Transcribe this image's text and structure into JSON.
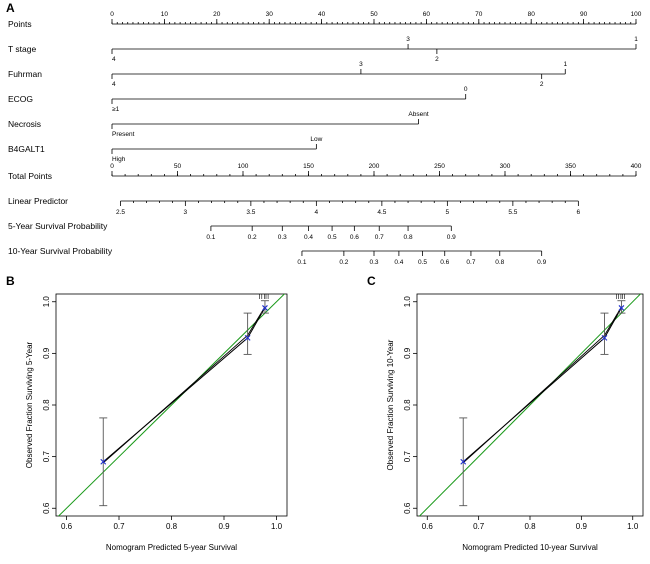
{
  "panels": {
    "a": "A",
    "b": "B",
    "c": "C"
  },
  "chart_data": [
    {
      "type": "nomogram",
      "panel": "A",
      "rows": [
        {
          "label": "Points",
          "kind": "scale",
          "min": 0,
          "max": 100,
          "ticks": [
            0,
            10,
            20,
            30,
            40,
            50,
            60,
            70,
            80,
            90,
            100
          ],
          "labels": [
            "0",
            "10",
            "20",
            "30",
            "40",
            "50",
            "60",
            "70",
            "80",
            "90",
            "100"
          ],
          "minor": 1
        },
        {
          "label": "T stage",
          "kind": "variable",
          "levels": [
            {
              "text": "4",
              "points": 0,
              "pos": "below"
            },
            {
              "text": "3",
              "points": 56.5,
              "pos": "above"
            },
            {
              "text": "2",
              "points": 62,
              "pos": "below"
            },
            {
              "text": "1",
              "points": 100,
              "pos": "above"
            }
          ]
        },
        {
          "label": "Fuhrman",
          "kind": "variable",
          "levels": [
            {
              "text": "4",
              "points": 0,
              "pos": "below"
            },
            {
              "text": "3",
              "points": 47.5,
              "pos": "above"
            },
            {
              "text": "2",
              "points": 82,
              "pos": "below"
            },
            {
              "text": "1",
              "points": 86.5,
              "pos": "above"
            }
          ]
        },
        {
          "label": "ECOG",
          "kind": "variable",
          "levels": [
            {
              "text": "≥1",
              "points": 0,
              "pos": "below"
            },
            {
              "text": "0",
              "points": 67.5,
              "pos": "above"
            }
          ]
        },
        {
          "label": "Necrosis",
          "kind": "variable",
          "levels": [
            {
              "text": "Present",
              "points": 0,
              "pos": "below"
            },
            {
              "text": "Absent",
              "points": 58.5,
              "pos": "above"
            }
          ]
        },
        {
          "label": "B4GALT1",
          "kind": "variable",
          "levels": [
            {
              "text": "High",
              "points": 0,
              "pos": "below"
            },
            {
              "text": "Low",
              "points": 39,
              "pos": "above"
            }
          ]
        },
        {
          "label": "Total Points",
          "kind": "total",
          "min": 0,
          "max": 400,
          "ticks": [
            0,
            50,
            100,
            150,
            200,
            250,
            300,
            350,
            400
          ],
          "labels": [
            "0",
            "50",
            "100",
            "150",
            "200",
            "250",
            "300",
            "350",
            "400"
          ],
          "minor": 10
        },
        {
          "label": "Linear Predictor",
          "kind": "lp",
          "ticks": [
            2.5,
            3,
            3.5,
            4,
            4.5,
            5,
            5.5,
            6
          ],
          "labels": [
            "2.5",
            "3",
            "3.5",
            "4",
            "4.5",
            "5",
            "5.5",
            "6"
          ],
          "total_at": [
            6.5,
            56,
            106,
            156,
            206,
            256,
            306,
            356
          ]
        },
        {
          "label": "5-Year Survival Probability",
          "kind": "prob",
          "labels": [
            "0.1",
            "0.2",
            "0.3",
            "0.4",
            "0.5",
            "0.6",
            "0.7",
            "0.8",
            "0.9"
          ],
          "total_at": [
            75.5,
            107,
            130,
            150,
            168,
            185,
            204,
            226,
            259
          ]
        },
        {
          "label": "10-Year Survival Probability",
          "kind": "prob",
          "labels": [
            "0.1",
            "0.2",
            "0.3",
            "0.4",
            "0.5",
            "0.6",
            "0.7",
            "0.8",
            "0.9"
          ],
          "total_at": [
            145,
            177,
            200,
            219,
            237,
            254,
            274,
            296,
            328
          ]
        }
      ]
    },
    {
      "type": "calibration",
      "panel": "B",
      "xlabel": "Nomogram Predicted 5-year Survival",
      "ylabel": "Observed Fraction Surviving 5-Year",
      "xlim": [
        0.58,
        1.02
      ],
      "ylim": [
        0.585,
        1.015
      ],
      "xticks": [
        "0.6",
        "0.7",
        "0.8",
        "0.9",
        "1.0"
      ],
      "yticks": [
        "0.6",
        "0.7",
        "0.8",
        "0.9",
        "1.0"
      ],
      "ideal_line": true,
      "points": [
        {
          "x": 0.67,
          "y": 0.69,
          "lo": 0.605,
          "hi": 0.775
        },
        {
          "x": 0.945,
          "y": 0.93,
          "lo": 0.898,
          "hi": 0.978
        },
        {
          "x": 0.978,
          "y": 0.988,
          "lo": 0.978,
          "hi": 1.002
        }
      ],
      "corrected": [
        [
          0.67,
          0.688
        ],
        [
          0.945,
          0.935
        ],
        [
          0.978,
          0.99
        ]
      ],
      "rug": [
        0.968,
        0.972,
        0.977,
        0.98,
        0.984
      ]
    },
    {
      "type": "calibration",
      "panel": "C",
      "xlabel": "Nomogram Predicted 10-year Survival",
      "ylabel": "Observed Fraction Surviving 10-Year",
      "xlim": [
        0.58,
        1.02
      ],
      "ylim": [
        0.585,
        1.015
      ],
      "xticks": [
        "0.6",
        "0.7",
        "0.8",
        "0.9",
        "1.0"
      ],
      "yticks": [
        "0.6",
        "0.7",
        "0.8",
        "0.9",
        "1.0"
      ],
      "ideal_line": true,
      "points": [
        {
          "x": 0.67,
          "y": 0.69,
          "lo": 0.605,
          "hi": 0.775
        },
        {
          "x": 0.945,
          "y": 0.93,
          "lo": 0.898,
          "hi": 0.978
        },
        {
          "x": 0.978,
          "y": 0.988,
          "lo": 0.978,
          "hi": 1.002
        }
      ],
      "corrected": [
        [
          0.67,
          0.688
        ],
        [
          0.945,
          0.935
        ],
        [
          0.978,
          0.99
        ]
      ],
      "rug": [
        0.968,
        0.972,
        0.977,
        0.98,
        0.984
      ]
    }
  ],
  "colors": {
    "ideal": "#1a9a1a",
    "marker": "#1f2fd0",
    "line": "#000000",
    "errorbar": "#555555"
  }
}
